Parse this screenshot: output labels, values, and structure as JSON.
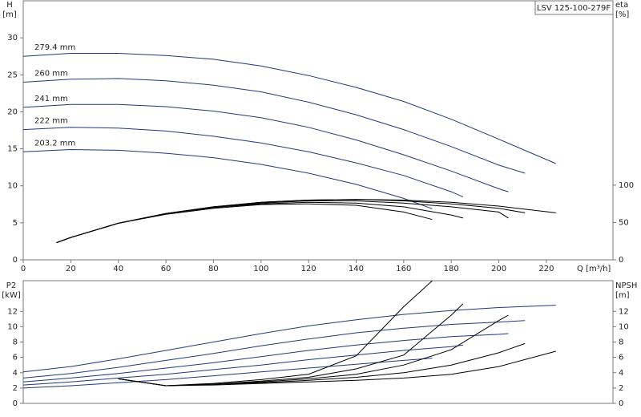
{
  "chart_data": [
    {
      "type": "line",
      "title": "LSV 125-100-279F",
      "ylabel": "H",
      "yunit": "[m]",
      "y2label": "eta",
      "y2unit": "[%]",
      "xlabel": "Q [m³/h]",
      "xlim": [
        0,
        248
      ],
      "xticks": [
        0,
        20,
        40,
        60,
        80,
        100,
        120,
        140,
        160,
        180,
        200,
        220
      ],
      "ylim": [
        0,
        35
      ],
      "yticks": [
        0,
        5,
        10,
        15,
        20,
        25,
        30
      ],
      "y2lim": [
        0,
        347
      ],
      "y2ticks": [
        0,
        50,
        100
      ],
      "grid": false,
      "series": [
        {
          "name": "279.4 mm",
          "color": "#1f3a7a",
          "x": [
            0,
            20,
            40,
            60,
            80,
            100,
            120,
            140,
            160,
            180,
            200,
            224
          ],
          "values": [
            27.5,
            27.9,
            27.9,
            27.6,
            27.1,
            26.2,
            24.9,
            23.3,
            21.4,
            19.0,
            16.3,
            13.0
          ]
        },
        {
          "name": "260 mm",
          "color": "#1f3a7a",
          "x": [
            0,
            20,
            40,
            60,
            80,
            100,
            120,
            140,
            160,
            180,
            200,
            211
          ],
          "values": [
            24.0,
            24.4,
            24.5,
            24.2,
            23.6,
            22.7,
            21.3,
            19.6,
            17.6,
            15.3,
            12.8,
            11.7
          ]
        },
        {
          "name": "241 mm",
          "color": "#1f3a7a",
          "x": [
            0,
            20,
            40,
            60,
            80,
            100,
            120,
            140,
            160,
            180,
            200,
            204
          ],
          "values": [
            20.6,
            21.0,
            21.0,
            20.7,
            20.1,
            19.2,
            17.9,
            16.2,
            14.2,
            12.0,
            9.6,
            9.2
          ]
        },
        {
          "name": "222 mm",
          "color": "#1f3a7a",
          "x": [
            0,
            20,
            40,
            60,
            80,
            100,
            120,
            140,
            160,
            180,
            185
          ],
          "values": [
            17.6,
            17.9,
            17.8,
            17.4,
            16.7,
            15.8,
            14.6,
            13.1,
            11.4,
            9.2,
            8.5
          ]
        },
        {
          "name": "203.2 mm",
          "color": "#1f3a7a",
          "x": [
            0,
            20,
            40,
            60,
            80,
            100,
            120,
            140,
            160,
            172
          ],
          "values": [
            14.6,
            14.9,
            14.8,
            14.4,
            13.8,
            12.9,
            11.7,
            10.2,
            8.3,
            6.9
          ]
        },
        {
          "axis": "y2",
          "color": "#000000",
          "x": [
            14,
            20,
            40,
            60,
            80,
            100,
            120,
            140,
            160,
            180,
            200,
            224
          ],
          "values": [
            23,
            30,
            49,
            62,
            71,
            77,
            80,
            81,
            80,
            77,
            72,
            63
          ]
        },
        {
          "axis": "y2",
          "color": "#000000",
          "x": [
            14,
            20,
            40,
            60,
            80,
            100,
            120,
            140,
            160,
            180,
            200,
            211
          ],
          "values": [
            23,
            30,
            49,
            62,
            71,
            77,
            80,
            81,
            79,
            75,
            69,
            63
          ]
        },
        {
          "axis": "y2",
          "color": "#000000",
          "x": [
            14,
            20,
            40,
            60,
            80,
            100,
            120,
            140,
            160,
            180,
            200,
            204
          ],
          "values": [
            23,
            30,
            49,
            62,
            70,
            76,
            79,
            79,
            76,
            71,
            64,
            56
          ]
        },
        {
          "axis": "y2",
          "color": "#000000",
          "x": [
            14,
            20,
            40,
            60,
            80,
            100,
            120,
            140,
            160,
            180,
            185
          ],
          "values": [
            23,
            30,
            49,
            62,
            70,
            75,
            77,
            76,
            71,
            60,
            56
          ]
        },
        {
          "axis": "y2",
          "color": "#000000",
          "x": [
            14,
            20,
            40,
            60,
            80,
            100,
            120,
            140,
            160,
            172
          ],
          "values": [
            23,
            30,
            49,
            61,
            69,
            74,
            75,
            73,
            64,
            54
          ]
        }
      ]
    },
    {
      "type": "line",
      "ylabel": "P2",
      "yunit": "[kW]",
      "y2label": "NPSH",
      "y2unit": "[m]",
      "xlim": [
        0,
        248
      ],
      "ylim": [
        0,
        16
      ],
      "yticks": [
        0,
        2,
        4,
        6,
        8,
        10,
        12
      ],
      "y2lim": [
        0,
        16
      ],
      "y2ticks": [
        0,
        2,
        4,
        6,
        8,
        10,
        12
      ],
      "grid": false,
      "series": [
        {
          "color": "#1f3a7a",
          "x": [
            0,
            20,
            40,
            60,
            80,
            100,
            120,
            140,
            160,
            180,
            200,
            224
          ],
          "values": [
            4.1,
            4.8,
            5.8,
            6.9,
            8.0,
            9.1,
            10.1,
            10.9,
            11.6,
            12.1,
            12.5,
            12.8
          ]
        },
        {
          "color": "#1f3a7a",
          "x": [
            0,
            20,
            40,
            60,
            80,
            100,
            120,
            140,
            160,
            180,
            200,
            211
          ],
          "values": [
            3.3,
            3.9,
            4.7,
            5.6,
            6.5,
            7.5,
            8.4,
            9.2,
            9.8,
            10.3,
            10.6,
            10.8
          ]
        },
        {
          "color": "#1f3a7a",
          "x": [
            0,
            20,
            40,
            60,
            80,
            100,
            120,
            140,
            160,
            180,
            200,
            204
          ],
          "values": [
            2.8,
            3.3,
            3.9,
            4.6,
            5.3,
            6.1,
            6.9,
            7.6,
            8.2,
            8.7,
            9.0,
            9.1
          ]
        },
        {
          "color": "#1f3a7a",
          "x": [
            0,
            20,
            40,
            60,
            80,
            100,
            120,
            140,
            160,
            180,
            185
          ],
          "values": [
            2.4,
            2.8,
            3.3,
            3.8,
            4.4,
            5.0,
            5.7,
            6.3,
            6.9,
            7.4,
            7.6
          ]
        },
        {
          "color": "#1f3a7a",
          "x": [
            0,
            20,
            40,
            60,
            80,
            100,
            120,
            140,
            160,
            172
          ],
          "values": [
            2.0,
            2.3,
            2.7,
            3.1,
            3.6,
            4.1,
            4.6,
            5.1,
            5.6,
            5.9
          ]
        },
        {
          "axis": "y2",
          "color": "#000000",
          "x": [
            40,
            60,
            80,
            100,
            120,
            140,
            160,
            180,
            200,
            224
          ],
          "values": [
            3.2,
            2.3,
            2.4,
            2.6,
            2.8,
            3.0,
            3.3,
            3.8,
            4.8,
            6.8
          ]
        },
        {
          "axis": "y2",
          "color": "#000000",
          "x": [
            40,
            60,
            80,
            100,
            120,
            140,
            160,
            180,
            200,
            211
          ],
          "values": [
            3.2,
            2.3,
            2.5,
            2.7,
            3.0,
            3.4,
            4.0,
            5.0,
            6.6,
            7.8
          ]
        },
        {
          "axis": "y2",
          "color": "#000000",
          "x": [
            40,
            60,
            80,
            100,
            120,
            140,
            160,
            180,
            200,
            204
          ],
          "values": [
            3.2,
            2.3,
            2.5,
            2.8,
            3.2,
            3.8,
            5.0,
            7.0,
            10.8,
            11.5
          ]
        },
        {
          "axis": "y2",
          "color": "#000000",
          "x": [
            40,
            60,
            80,
            100,
            120,
            140,
            160,
            180,
            185
          ],
          "values": [
            3.2,
            2.3,
            2.5,
            2.9,
            3.4,
            4.5,
            6.3,
            11.5,
            13.0
          ]
        },
        {
          "axis": "y2",
          "color": "#000000",
          "x": [
            40,
            60,
            80,
            100,
            120,
            140,
            160,
            172
          ],
          "values": [
            3.2,
            2.3,
            2.6,
            3.1,
            3.8,
            6.2,
            12.6,
            16.0
          ]
        }
      ]
    }
  ]
}
